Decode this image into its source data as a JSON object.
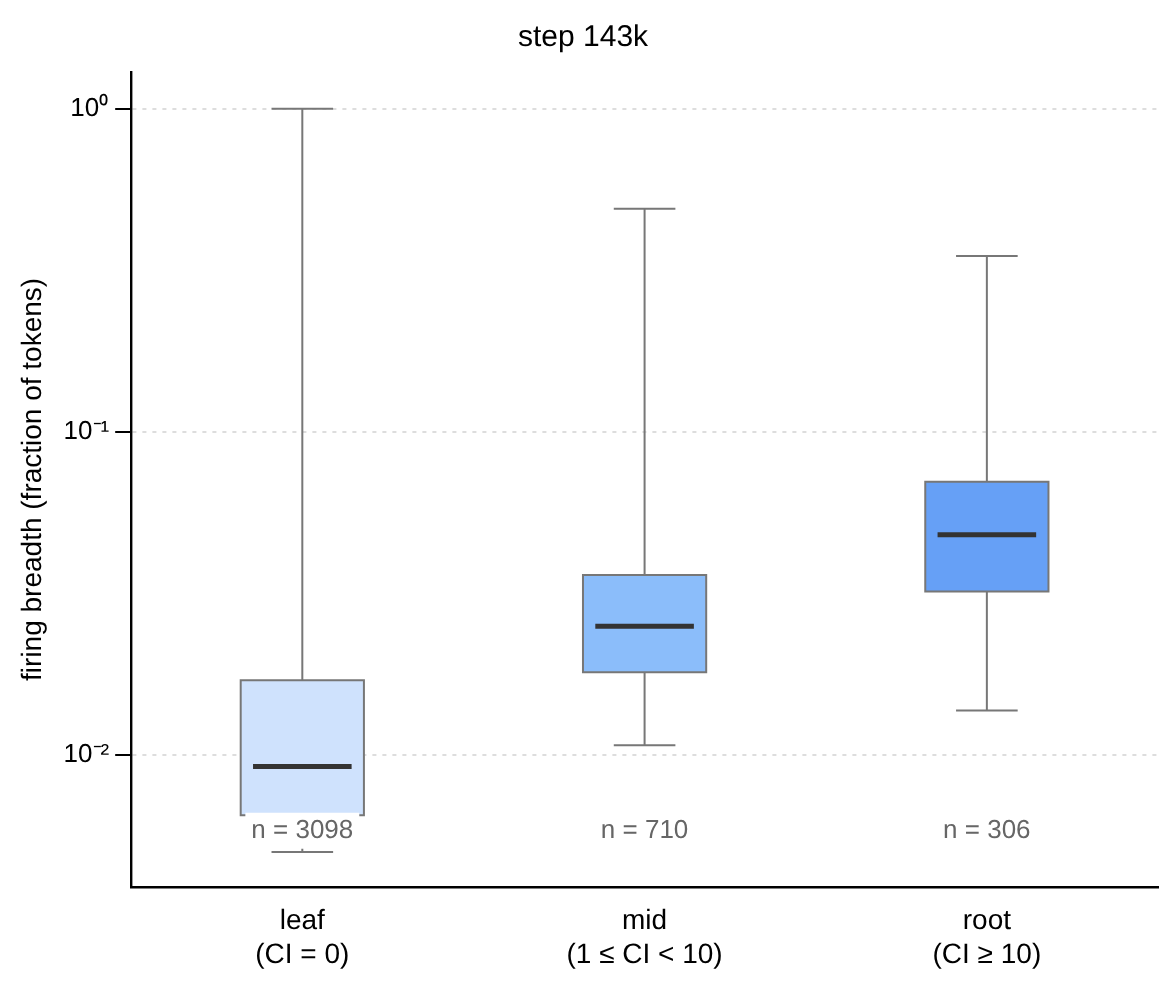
{
  "chart_data": {
    "type": "box",
    "title": "step 143k",
    "ylabel": "firing breadth (fraction of tokens)",
    "categories": [
      "leaf\n(CI = 0)",
      "mid\n(1 ≤ CI < 10)",
      "root\n(CI ≥ 10)"
    ],
    "colors": [
      "#cfe2fd",
      "#8bbdfa",
      "#66a0f6"
    ],
    "boxes": [
      {
        "low": 0.005,
        "q1": 0.0065,
        "median": 0.0092,
        "q3": 0.017,
        "high": 1.0
      },
      {
        "low": 0.0107,
        "q1": 0.018,
        "median": 0.025,
        "q3": 0.036,
        "high": 0.49
      },
      {
        "low": 0.0137,
        "q1": 0.032,
        "median": 0.048,
        "q3": 0.07,
        "high": 0.35
      }
    ],
    "annotations": [
      "n = 3098",
      "n = 710",
      "n = 306"
    ],
    "log": "y",
    "ylim": [
      0.0039,
      1.3
    ],
    "yticks": [
      {
        "value": 0.01,
        "label": "10⁻²"
      },
      {
        "value": 0.1,
        "label": "10⁻¹"
      },
      {
        "value": 1,
        "label": "10⁰"
      }
    ],
    "grid": "y",
    "legend": false
  }
}
